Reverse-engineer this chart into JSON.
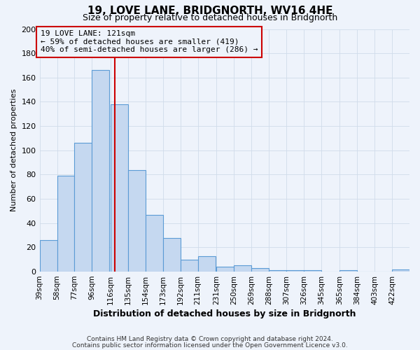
{
  "title": "19, LOVE LANE, BRIDGNORTH, WV16 4HE",
  "subtitle": "Size of property relative to detached houses in Bridgnorth",
  "xlabel": "Distribution of detached houses by size in Bridgnorth",
  "ylabel": "Number of detached properties",
  "footer_line1": "Contains HM Land Registry data © Crown copyright and database right 2024.",
  "footer_line2": "Contains public sector information licensed under the Open Government Licence v3.0.",
  "bin_labels": [
    "39sqm",
    "58sqm",
    "77sqm",
    "96sqm",
    "116sqm",
    "135sqm",
    "154sqm",
    "173sqm",
    "192sqm",
    "211sqm",
    "231sqm",
    "250sqm",
    "269sqm",
    "288sqm",
    "307sqm",
    "326sqm",
    "345sqm",
    "365sqm",
    "384sqm",
    "403sqm",
    "422sqm"
  ],
  "bin_edges": [
    39,
    58,
    77,
    96,
    116,
    135,
    154,
    173,
    192,
    211,
    231,
    250,
    269,
    288,
    307,
    326,
    345,
    365,
    384,
    403,
    422
  ],
  "bar_values": [
    26,
    79,
    106,
    166,
    138,
    84,
    47,
    28,
    10,
    13,
    4,
    5,
    3,
    1,
    1,
    1,
    0,
    1,
    0,
    0,
    2
  ],
  "bar_color": "#c5d8f0",
  "bar_edge_color": "#5b9bd5",
  "grid_color": "#d0dcea",
  "background_color": "#eef3fb",
  "annotation_line1": "19 LOVE LANE: 121sqm",
  "annotation_line2": "← 59% of detached houses are smaller (419)",
  "annotation_line3": "40% of semi-detached houses are larger (286) →",
  "annotation_box_edge": "#cc0000",
  "property_line_x": 121,
  "ylim": [
    0,
    200
  ],
  "yticks": [
    0,
    20,
    40,
    60,
    80,
    100,
    120,
    140,
    160,
    180,
    200
  ],
  "title_fontsize": 11,
  "subtitle_fontsize": 9
}
